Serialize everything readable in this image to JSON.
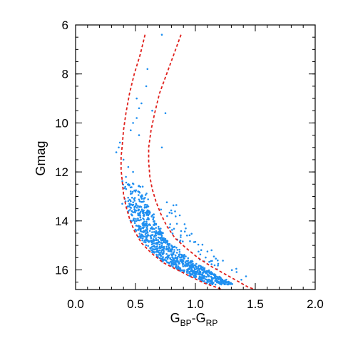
{
  "chart_data": {
    "type": "scatter",
    "xlabel": "G_BP-G_RP",
    "xlabel_main": "G",
    "xlabel_sub1": "BP",
    "xlabel_mid": "-G",
    "xlabel_sub2": "RP",
    "ylabel": "Gmag",
    "xlim": [
      0.0,
      2.0
    ],
    "ylim": [
      16.8,
      6.0
    ],
    "y_inverted": true,
    "grid": false,
    "x_ticks": [
      0.0,
      0.5,
      1.0,
      1.5,
      2.0
    ],
    "x_tick_labels": [
      "0.0",
      "0.5",
      "1.0",
      "1.5",
      "2.0"
    ],
    "y_ticks": [
      6,
      8,
      10,
      12,
      14,
      16
    ],
    "y_tick_labels": [
      "6",
      "8",
      "10",
      "12",
      "14",
      "16"
    ],
    "colors": {
      "points": "#1f8ff0",
      "isochrone": "#e0201c"
    },
    "isochrones": [
      {
        "x": [
          0.58,
          0.54,
          0.49,
          0.45,
          0.42,
          0.4,
          0.39,
          0.38,
          0.38,
          0.39,
          0.4,
          0.42,
          0.45,
          0.49,
          0.55,
          0.63,
          0.73,
          0.85,
          0.97,
          1.08,
          1.17,
          1.22
        ],
        "y": [
          6.4,
          7.2,
          8.0,
          8.8,
          9.6,
          10.3,
          10.9,
          11.4,
          11.9,
          12.4,
          12.9,
          13.4,
          13.9,
          14.4,
          14.9,
          15.3,
          15.7,
          16.0,
          16.3,
          16.55,
          16.7,
          16.8
        ]
      },
      {
        "x": [
          0.88,
          0.82,
          0.76,
          0.7,
          0.66,
          0.63,
          0.61,
          0.61,
          0.62,
          0.64,
          0.67,
          0.71,
          0.76,
          0.83,
          0.92,
          1.02,
          1.13,
          1.24,
          1.35,
          1.44,
          1.5
        ],
        "y": [
          6.4,
          7.2,
          8.0,
          8.8,
          9.6,
          10.3,
          11.0,
          11.6,
          12.2,
          12.7,
          13.2,
          13.7,
          14.2,
          14.7,
          15.1,
          15.5,
          15.85,
          16.15,
          16.45,
          16.7,
          16.8
        ]
      }
    ],
    "stars": {
      "x": [
        0.72,
        0.6,
        0.59,
        0.51,
        0.55,
        0.53,
        0.64,
        0.51,
        0.48,
        0.46,
        0.53,
        0.75,
        0.37,
        0.36,
        0.34,
        0.4,
        0.44,
        0.72,
        0.42,
        0.44,
        0.5,
        0.41,
        0.39,
        0.46,
        0.47,
        0.52,
        0.48,
        0.56,
        0.5,
        0.6
      ],
      "y": [
        6.4,
        7.8,
        8.5,
        9.0,
        9.2,
        9.4,
        9.5,
        9.8,
        10.0,
        10.3,
        10.5,
        9.6,
        10.8,
        11.0,
        11.2,
        11.5,
        11.8,
        11.0,
        12.2,
        12.5,
        12.8,
        13.1,
        13.3,
        12.9,
        13.6,
        13.9,
        12.0,
        12.6,
        13.4,
        14.2
      ]
    }
  }
}
